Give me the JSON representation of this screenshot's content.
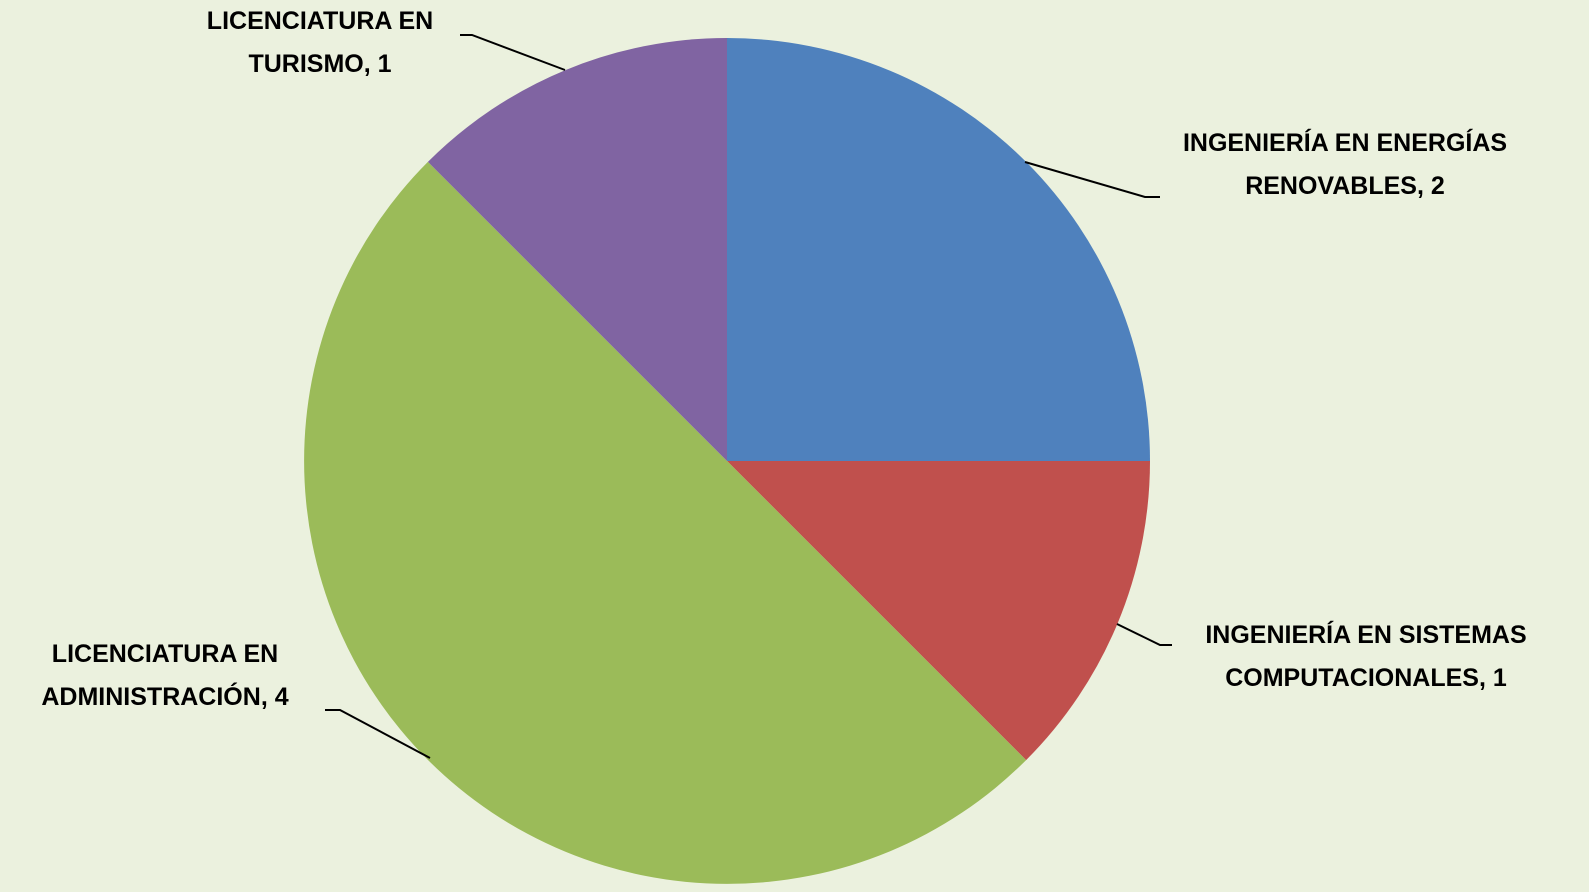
{
  "chart_data": {
    "type": "pie",
    "categories": [
      "INGENIERÍA EN ENERGÍAS RENOVABLES",
      "INGENIERÍA EN SISTEMAS COMPUTACIONALES",
      "LICENCIATURA EN ADMINISTRACIÓN",
      "LICENCIATURA EN TURISMO"
    ],
    "values": [
      2,
      1,
      4,
      1
    ],
    "colors": [
      "#4f81bd",
      "#c0504d",
      "#9bbb59",
      "#8064a2"
    ]
  }
}
